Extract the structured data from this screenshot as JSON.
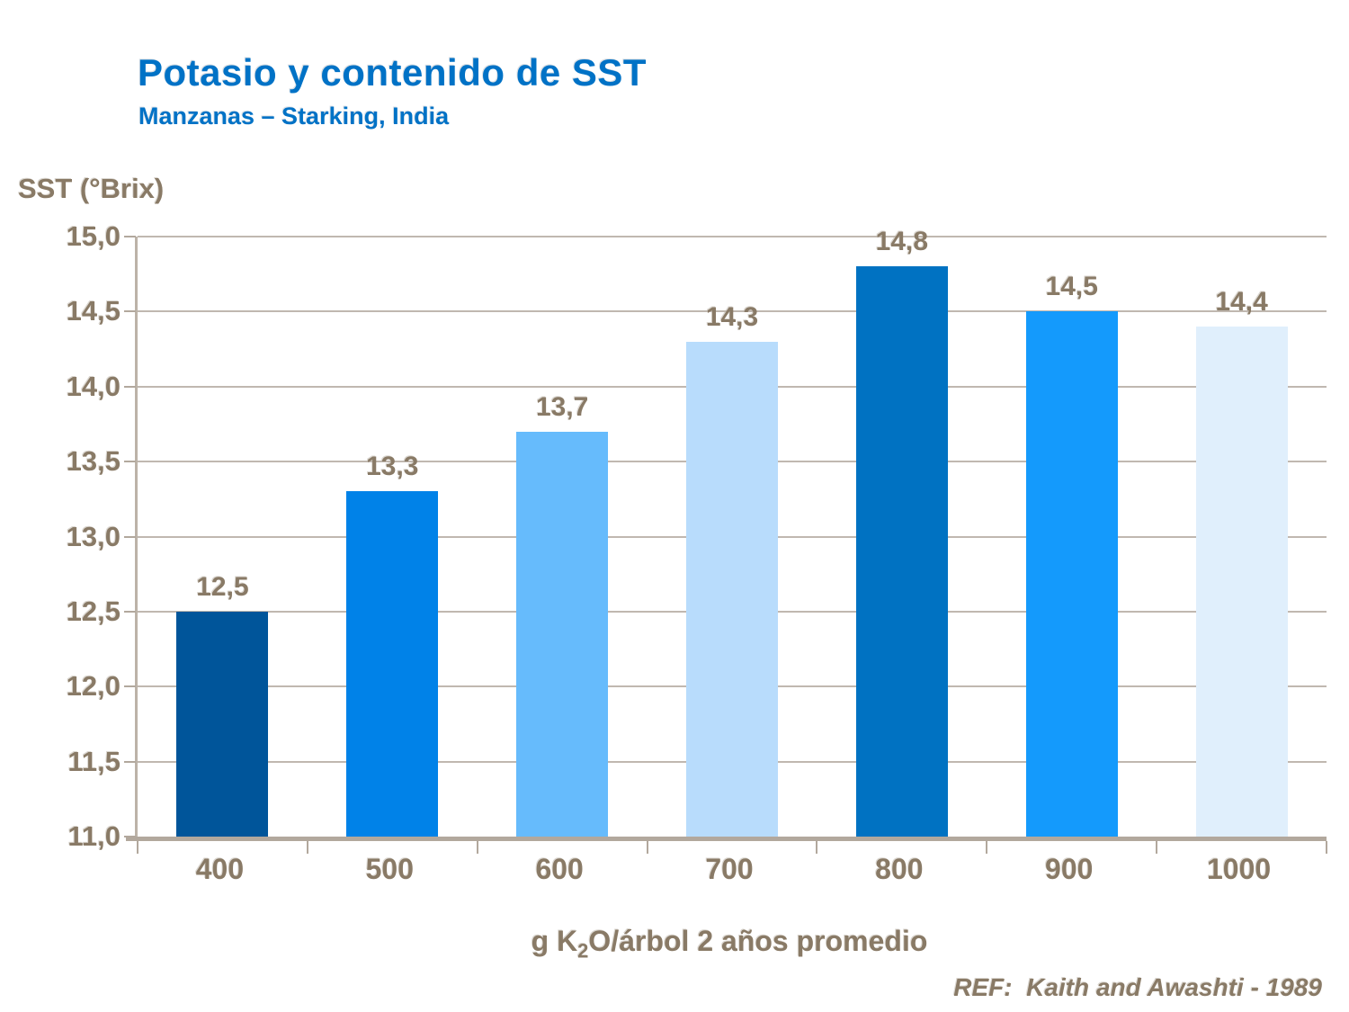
{
  "header": {
    "title": "Potasio y contenido de SST",
    "subtitle": "Manzanas – Starking, India"
  },
  "footer": {
    "ref": "REF:  Kaith and Awashti - 1989"
  },
  "colors": {
    "title_blue": "#0072C6",
    "text_brown": "#897A66",
    "gridline": "#C0B8B0",
    "axis": "#B2A89D",
    "bar_colors": [
      "#00559A",
      "#0082E8",
      "#66BBFC",
      "#B8DCFC",
      "#0072C2",
      "#149AFC",
      "#E0EFFC"
    ]
  },
  "chart_data": {
    "type": "bar",
    "title": "Potasio y contenido de SST",
    "subtitle": "Manzanas – Starking, India",
    "ylabel": "SST (°Brix)",
    "xlabel": "g K2O/árbol 2 años promedio",
    "xlabel_parts": {
      "pre": "g K",
      "sub": "2",
      "post": "O/árbol 2 años promedio"
    },
    "categories": [
      "400",
      "500",
      "600",
      "700",
      "800",
      "900",
      "1000"
    ],
    "values": [
      12.5,
      13.3,
      13.7,
      14.3,
      14.8,
      14.5,
      14.4
    ],
    "value_labels": [
      "12,5",
      "13,3",
      "13,7",
      "14,3",
      "14,8",
      "14,5",
      "14,4"
    ],
    "ylim": [
      11.0,
      15.0
    ],
    "ytick_step": 0.5,
    "ytick_labels": [
      "15,0",
      "14,5",
      "14,0",
      "13,5",
      "13,0",
      "12,5",
      "12,0",
      "11,5",
      "11,0"
    ],
    "grid": true,
    "legend": false,
    "decimal_separator": ",",
    "reference": "REF:  Kaith and Awashti - 1989"
  }
}
